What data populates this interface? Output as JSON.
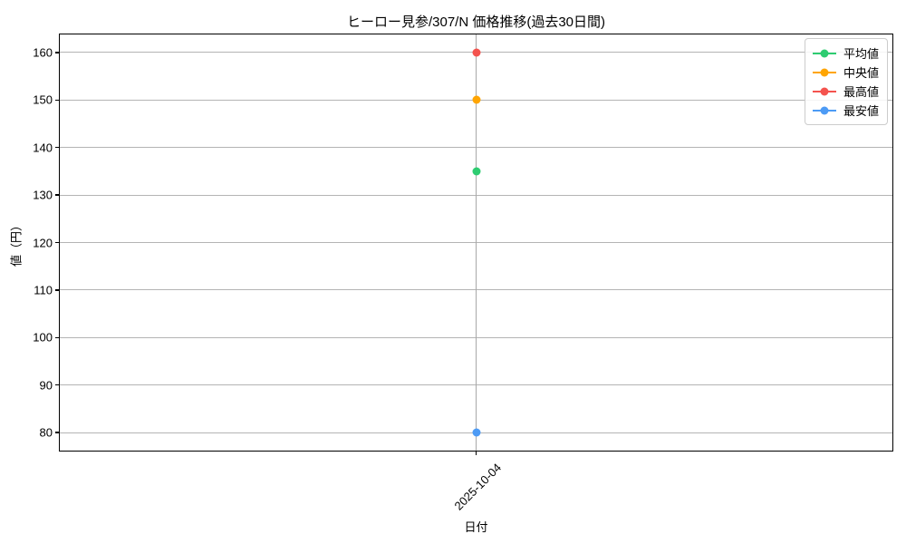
{
  "chart_data": {
    "type": "line",
    "title": "ヒーロー見参/307/N 価格推移(過去30日間)",
    "xlabel": "日付",
    "ylabel": "値（円）",
    "x": [
      "2025-10-04"
    ],
    "series": [
      {
        "name": "平均値",
        "color": "#2ecc71",
        "values": [
          135
        ]
      },
      {
        "name": "中央値",
        "color": "#ffa502",
        "values": [
          150
        ]
      },
      {
        "name": "最高値",
        "color": "#f4534e",
        "values": [
          160
        ]
      },
      {
        "name": "最安値",
        "color": "#4d9bf5",
        "values": [
          80
        ]
      }
    ],
    "yticks": [
      80,
      90,
      100,
      110,
      120,
      130,
      140,
      150,
      160
    ],
    "ylim": [
      76,
      164
    ],
    "grid": true,
    "legend_position": "upper right",
    "colors": {
      "grid": "#b4b4b4",
      "axis": "#000000",
      "background": "#ffffff"
    }
  }
}
